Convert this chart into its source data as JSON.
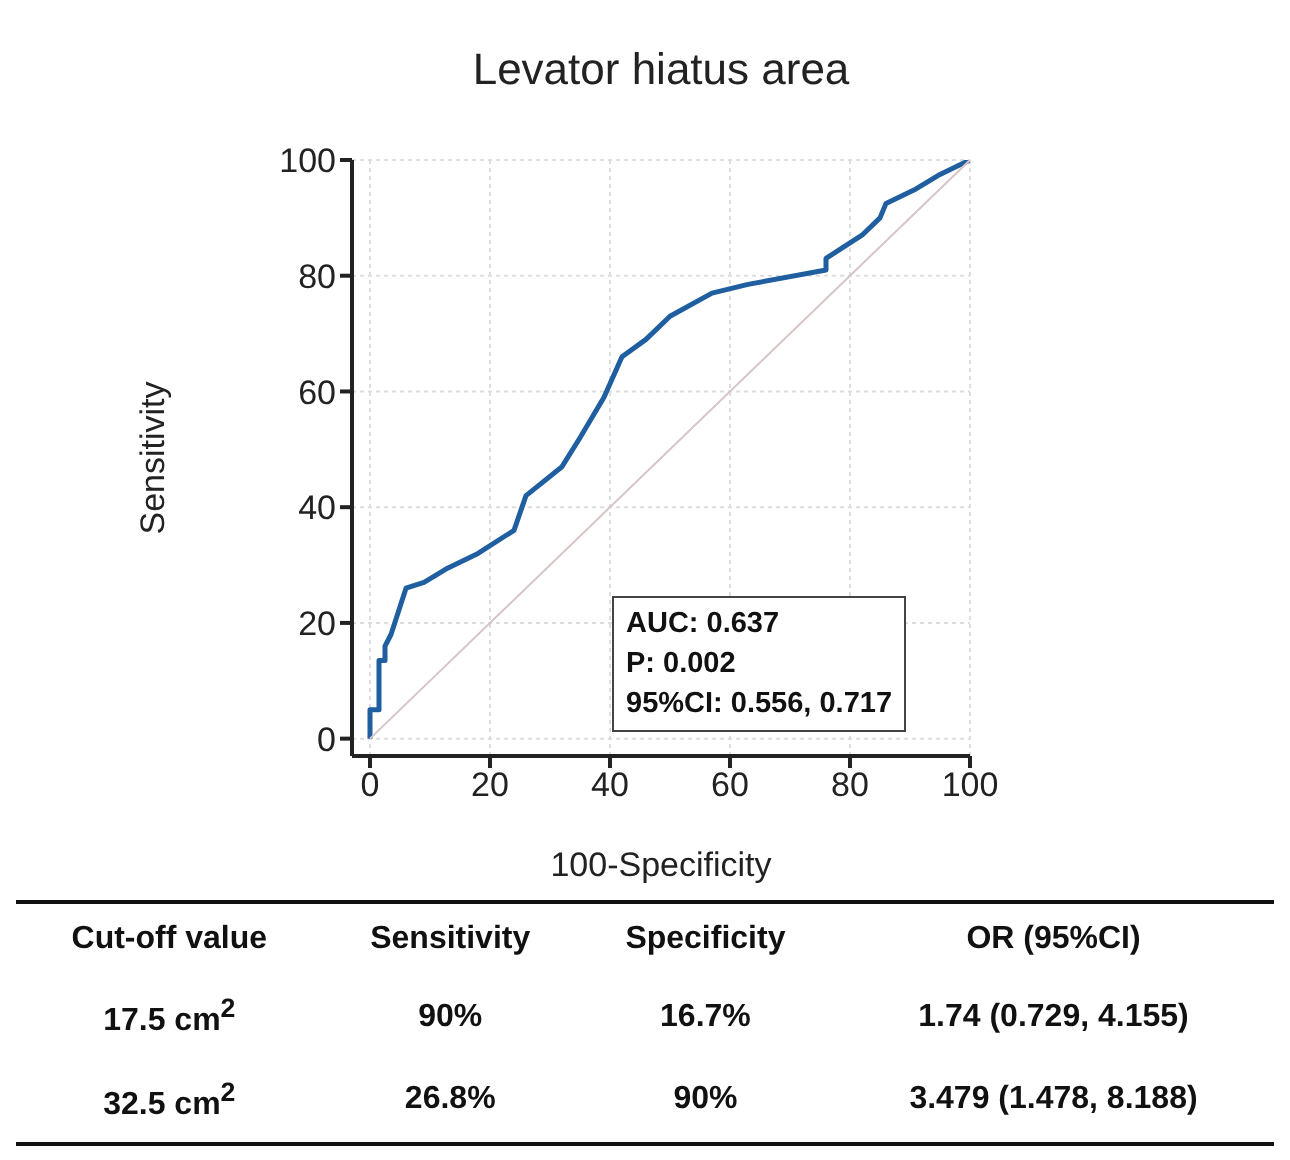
{
  "chart_data": {
    "type": "line",
    "title": "Levator hiatus area",
    "xlabel": "100-Specificity",
    "ylabel": "Sensitivity",
    "xlim": [
      -3,
      100
    ],
    "ylim": [
      -3,
      100
    ],
    "xticks": [
      0,
      20,
      40,
      60,
      80,
      100
    ],
    "yticks": [
      0,
      20,
      40,
      60,
      80,
      100
    ],
    "grid": true,
    "legend": false,
    "marker": "none",
    "line_style": "solid",
    "series": [
      {
        "color": "#1f5fa0",
        "x": [
          0,
          0,
          1.5,
          1.5,
          2.5,
          2.5,
          3.5,
          6,
          9,
          13,
          18,
          24,
          26,
          32,
          35,
          39,
          42,
          46,
          50,
          57,
          63,
          76,
          76,
          82,
          85,
          86,
          91,
          95,
          98,
          100
        ],
        "values": [
          0,
          5,
          5,
          13.5,
          13.5,
          16,
          18,
          26,
          27,
          29.5,
          32,
          36,
          42,
          47,
          52,
          59,
          66,
          69,
          73,
          77,
          78.5,
          81,
          83,
          87,
          90,
          92.5,
          95,
          97.5,
          99,
          100
        ]
      },
      {
        "color": "#d8c4c4",
        "x": [
          0,
          100
        ],
        "values": [
          0,
          100
        ]
      }
    ],
    "annotations": [
      "AUC: 0.637",
      "P: 0.002",
      "95%CI: 0.556, 0.717",
      "Cut-off value",
      "Sensitivity",
      "Specificity",
      "OR (95%CI)",
      "17.5 cm$^{2}$",
      "90%",
      "16.7%",
      "1.74 (0.729, 4.155)",
      "32.5 cm$^{2}$",
      "26.8%",
      "90%",
      "3.479 (1.478, 8.188)"
    ]
  }
}
